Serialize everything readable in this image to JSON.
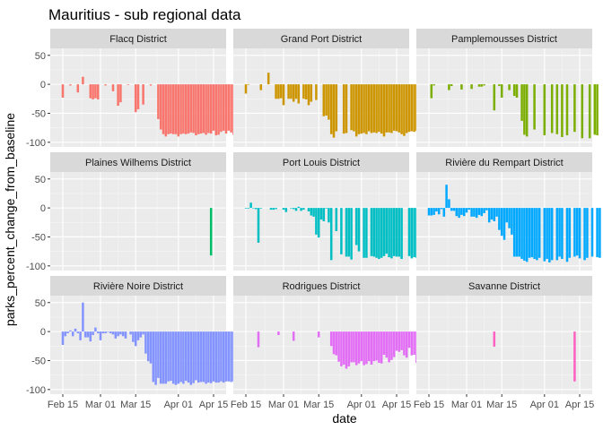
{
  "chart_data": {
    "type": "bar",
    "title": "Mauritius - sub regional data",
    "xlabel": "date",
    "ylabel": "parks_percent_change_from_baseline",
    "x_start": "2020-02-15",
    "xlim": [
      "2020-02-10",
      "2020-04-20"
    ],
    "ylim": [
      -108,
      62
    ],
    "y_ticks": [
      50,
      0,
      -50,
      -100
    ],
    "y_tick_labels": [
      "50",
      "0",
      "-50",
      "-100"
    ],
    "x_ticks": [
      "2020-02-15",
      "2020-03-01",
      "2020-03-15",
      "2020-04-01",
      "2020-04-15"
    ],
    "x_tick_labels": [
      "Feb 15",
      "Mar 01",
      "Mar 15",
      "Apr 01",
      "Apr 15"
    ],
    "layout": "facet_wrap 3x3",
    "grid": true,
    "legend": "none",
    "panel_background": "#ebebeb",
    "strip_background": "#d9d9d9",
    "panels": [
      {
        "name": "Flacq District",
        "color": "#F8766D",
        "values": [
          -23,
          null,
          null,
          -2,
          null,
          null,
          -14,
          null,
          13,
          null,
          null,
          -24,
          -26,
          -24,
          -26,
          null,
          null,
          -2,
          null,
          null,
          -12,
          null,
          -37,
          -31,
          null,
          null,
          -1,
          null,
          null,
          -48,
          -43,
          null,
          -35,
          null,
          null,
          -2,
          null,
          null,
          -60,
          -78,
          -86,
          -90,
          -86,
          -85,
          -86,
          -86,
          -90,
          -86,
          -85,
          -86,
          -85,
          -83,
          -84,
          -88,
          -86,
          -85,
          -84,
          -87,
          -84,
          -85,
          -80,
          -88,
          -87,
          -82,
          -80,
          -85,
          -80,
          -83,
          -87,
          -80
        ]
      },
      {
        "name": "Grand Port District",
        "color": "#CD9600",
        "values": [
          -16,
          0,
          null,
          null,
          null,
          null,
          -10,
          null,
          null,
          20,
          null,
          null,
          -25,
          -25,
          -24,
          -36,
          null,
          -25,
          -25,
          -30,
          -25,
          -33,
          null,
          -25,
          -26,
          -36,
          -30,
          null,
          -27,
          null,
          null,
          -55,
          -54,
          -61,
          -86,
          -92,
          -81,
          null,
          null,
          -85,
          -84,
          null,
          -79,
          -81,
          -90,
          -86,
          -85,
          -84,
          -86,
          -81,
          -84,
          -83,
          -84,
          -82,
          -85,
          -90,
          -83,
          -83,
          -84,
          -80,
          -81,
          -83,
          -86,
          -89,
          -84,
          -82,
          -81,
          -82,
          -80,
          -83
        ]
      },
      {
        "name": "Pamplemousses District",
        "color": "#7CAE00",
        "values": [
          null,
          -24,
          -2,
          null,
          null,
          null,
          null,
          null,
          -10,
          -3,
          null,
          null,
          null,
          -9,
          null,
          null,
          null,
          -8,
          null,
          null,
          -4,
          -4,
          -2,
          null,
          null,
          null,
          -45,
          null,
          -3,
          -23,
          null,
          null,
          -10,
          null,
          -20,
          -23,
          null,
          -63,
          -87,
          -90,
          null,
          null,
          -78,
          null,
          null,
          null,
          -88,
          null,
          null,
          -84,
          null,
          -86,
          null,
          -91,
          null,
          -88,
          null,
          null,
          -82,
          null,
          null,
          -93,
          null,
          null,
          -93,
          null,
          -87,
          -88,
          null,
          null
        ]
      },
      {
        "name": "Plaines Wilhems District",
        "color": "#00BE67",
        "values": [
          null,
          null,
          null,
          null,
          null,
          null,
          null,
          null,
          null,
          null,
          null,
          null,
          null,
          null,
          null,
          null,
          null,
          null,
          null,
          null,
          null,
          null,
          null,
          null,
          null,
          null,
          null,
          null,
          null,
          null,
          null,
          null,
          null,
          null,
          null,
          null,
          null,
          null,
          null,
          null,
          null,
          null,
          null,
          null,
          null,
          null,
          null,
          null,
          null,
          null,
          null,
          null,
          null,
          null,
          null,
          null,
          null,
          null,
          null,
          -82,
          null,
          null,
          null,
          null,
          null,
          null,
          null,
          null,
          null,
          null
        ]
      },
      {
        "name": "Port Louis District",
        "color": "#00BFC4",
        "values": [
          -1,
          -1,
          9,
          0,
          -2,
          -60,
          -1,
          null,
          null,
          null,
          -3,
          -3,
          -2,
          null,
          null,
          -3,
          -7,
          null,
          0,
          -2,
          -5,
          2,
          -5,
          -3,
          null,
          -6,
          -13,
          -15,
          -46,
          -51,
          -20,
          -23,
          -1,
          -25,
          -90,
          null,
          -40,
          null,
          -80,
          null,
          -84,
          -84,
          -89,
          null,
          -64,
          -75,
          null,
          -86,
          -86,
          null,
          -83,
          -84,
          -86,
          -88,
          -86,
          -83,
          -79,
          -85,
          -87,
          -83,
          -84,
          -84,
          -88,
          null,
          null,
          -83,
          -87,
          -85,
          -86,
          -87
        ]
      },
      {
        "name": "Rivière du Rempart District",
        "color": "#00A9FF",
        "values": [
          -13,
          -13,
          -12,
          -6,
          -11,
          -2,
          -15,
          40,
          15,
          -5,
          -5,
          -14,
          -17,
          -12,
          -14,
          -8,
          -3,
          -15,
          -15,
          -17,
          -12,
          -14,
          -9,
          -4,
          -25,
          -20,
          -23,
          -15,
          -38,
          -48,
          -55,
          -25,
          -35,
          -46,
          -84,
          -84,
          -84,
          -88,
          -91,
          -93,
          -86,
          -85,
          -88,
          -90,
          -86,
          null,
          -92,
          -88,
          -94,
          -90,
          null,
          -90,
          -84,
          -88,
          null,
          -93,
          -86,
          null,
          -84,
          -82,
          -87,
          null,
          -90,
          -86,
          null,
          -84,
          null,
          -85,
          -86,
          null
        ]
      },
      {
        "name": "Rivière Noire District",
        "color": "#8494FF",
        "values": [
          -23,
          -8,
          -3,
          2,
          -8,
          5,
          -3,
          -15,
          50,
          -10,
          -10,
          -17,
          -6,
          7,
          -3,
          -15,
          -3,
          -3,
          0,
          -3,
          -5,
          -12,
          -8,
          -5,
          -8,
          -12,
          null,
          -5,
          -18,
          -25,
          -15,
          -10,
          -5,
          -38,
          -51,
          -55,
          -87,
          -92,
          -80,
          -90,
          -90,
          -90,
          -86,
          -85,
          -90,
          -92,
          -90,
          -87,
          -90,
          -85,
          -88,
          -92,
          -89,
          -84,
          -88,
          -87,
          -87,
          -90,
          -88,
          -89,
          -86,
          -88,
          -88,
          -86,
          -88,
          -86,
          -86,
          -87,
          -86,
          -88
        ]
      },
      {
        "name": "Rodrigues District",
        "color": "#E36EF6",
        "values": [
          null,
          null,
          null,
          null,
          null,
          -27,
          null,
          null,
          null,
          null,
          null,
          null,
          null,
          -6,
          null,
          null,
          null,
          null,
          null,
          -16,
          null,
          null,
          null,
          null,
          null,
          null,
          null,
          null,
          null,
          -10,
          null,
          null,
          null,
          null,
          -25,
          -39,
          -41,
          -52,
          -60,
          -57,
          -64,
          -60,
          -53,
          -53,
          -58,
          -55,
          -51,
          -58,
          -56,
          -51,
          -57,
          -51,
          -50,
          -54,
          -55,
          -40,
          -45,
          -53,
          -49,
          -44,
          -33,
          -35,
          -32,
          -41,
          -45,
          -28,
          -41,
          -40,
          -54,
          -30
        ]
      },
      {
        "name": "Savanne District",
        "color": "#FF61C3",
        "values": [
          null,
          null,
          null,
          null,
          null,
          null,
          null,
          null,
          null,
          null,
          null,
          null,
          null,
          null,
          null,
          null,
          null,
          null,
          null,
          null,
          null,
          null,
          null,
          null,
          null,
          null,
          -26,
          null,
          null,
          null,
          null,
          null,
          null,
          null,
          null,
          null,
          null,
          null,
          null,
          null,
          null,
          null,
          null,
          null,
          null,
          null,
          null,
          null,
          null,
          null,
          null,
          null,
          null,
          null,
          null,
          null,
          null,
          null,
          -86,
          null,
          null,
          null,
          null,
          null,
          null,
          null,
          null,
          null,
          null,
          null
        ]
      }
    ]
  }
}
